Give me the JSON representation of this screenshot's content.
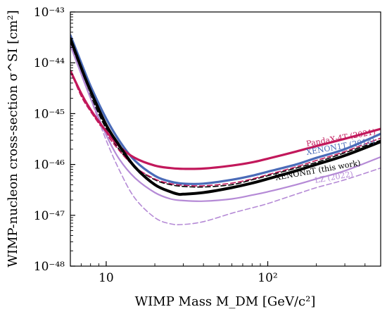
{
  "chart_data": {
    "type": "line",
    "title": "",
    "xlabel": "WIMP Mass M_DM [GeV/c²]",
    "ylabel": "WIMP-nucleon cross-section σ^SI [cm²]",
    "x_scale": "log",
    "y_scale": "log",
    "xlim": [
      6,
      500
    ],
    "ylim": [
      1e-48,
      1e-43
    ],
    "x_ticks": [
      {
        "value": 10,
        "label": "10"
      },
      {
        "value": 100,
        "label": "10²"
      }
    ],
    "y_ticks": [
      {
        "value": 1e-48,
        "label": "10⁻⁴⁸"
      },
      {
        "value": 1e-47,
        "label": "10⁻⁴⁷"
      },
      {
        "value": 1e-46,
        "label": "10⁻⁴⁶"
      },
      {
        "value": 1e-45,
        "label": "10⁻⁴⁵"
      },
      {
        "value": 1e-44,
        "label": "10⁻⁴⁴"
      },
      {
        "value": 1e-43,
        "label": "10⁻⁴³"
      }
    ],
    "grid": false,
    "series": [
      {
        "name": "PandaX-4T (2021)",
        "color": "#c2185b",
        "style": "solid",
        "width": 3.2,
        "x": [
          6,
          7,
          8,
          10,
          12,
          15,
          20,
          25,
          30,
          40,
          60,
          80,
          100,
          150,
          200,
          300,
          500
        ],
        "y": [
          7e-45,
          2.5e-45,
          1.2e-45,
          4.5e-46,
          2.3e-46,
          1.35e-46,
          9.5e-47,
          8.5e-47,
          8.2e-47,
          8.3e-47,
          9.5e-47,
          1.1e-46,
          1.3e-46,
          1.8e-46,
          2.3e-46,
          3.2e-46,
          5e-46
        ]
      },
      {
        "name": "XENON1T (2018)",
        "color": "#4a6bb8",
        "style": "solid",
        "width": 3.2,
        "x": [
          6,
          7,
          8,
          10,
          12,
          15,
          20,
          25,
          30,
          40,
          60,
          80,
          100,
          150,
          200,
          300,
          500
        ],
        "y": [
          3.5e-44,
          1e-44,
          3.5e-45,
          8e-46,
          3e-46,
          1.2e-46,
          6e-47,
          4.6e-47,
          4.2e-47,
          4.2e-47,
          5e-47,
          6e-47,
          7.2e-47,
          1e-46,
          1.35e-46,
          2e-46,
          4e-46
        ]
      },
      {
        "name": "LZ (2022)",
        "color": "#b58ad6",
        "style": "solid",
        "width": 2.2,
        "x": [
          6,
          7,
          8,
          10,
          12,
          15,
          20,
          25,
          30,
          40,
          60,
          80,
          100,
          150,
          200,
          300,
          500
        ],
        "y": [
          2.2e-44,
          6e-45,
          2e-45,
          3.8e-46,
          1.3e-46,
          5.5e-47,
          2.8e-47,
          2.1e-47,
          1.95e-47,
          1.9e-47,
          2.1e-47,
          2.5e-47,
          2.9e-47,
          4e-47,
          5.2e-47,
          7.5e-47,
          1.4e-46
        ]
      },
      {
        "name": "",
        "color": "#b58ad6",
        "style": "dashed",
        "width": 1.6,
        "x": [
          6,
          7,
          8,
          10,
          12,
          15,
          20,
          25,
          30,
          40,
          60,
          80,
          100,
          150,
          200,
          300,
          500
        ],
        "y": [
          3e-44,
          7e-45,
          2e-45,
          3e-46,
          8e-47,
          2.2e-47,
          9e-48,
          6.8e-48,
          6.6e-48,
          7.5e-48,
          1.1e-47,
          1.4e-47,
          1.7e-47,
          2.6e-47,
          3.5e-47,
          5e-47,
          8.5e-47
        ]
      },
      {
        "name": "XENONnT (this work)",
        "color": "#000000",
        "style": "solid",
        "width": 4,
        "x": [
          6,
          7,
          8,
          10,
          12,
          15,
          20,
          25,
          28,
          30,
          40,
          60,
          80,
          100,
          150,
          200,
          300,
          500
        ],
        "y": [
          3e-44,
          8e-45,
          2.8e-45,
          6e-46,
          2.4e-46,
          9e-47,
          4e-47,
          2.9e-47,
          2.6e-47,
          2.6e-47,
          2.8e-47,
          3.5e-47,
          4.3e-47,
          5.2e-47,
          7.5e-47,
          1e-46,
          1.5e-46,
          2.8e-46
        ]
      },
      {
        "name": "",
        "color": "#000000",
        "style": "dashed",
        "width": 1.6,
        "x": [
          6,
          7,
          8,
          10,
          12,
          15,
          20,
          25,
          30,
          40,
          60,
          80,
          100,
          150,
          200,
          300,
          500
        ],
        "y": [
          2.5e-44,
          6e-45,
          2.2e-45,
          5e-46,
          2e-46,
          9e-47,
          5e-47,
          4e-47,
          3.7e-47,
          3.6e-47,
          4e-47,
          5e-47,
          6e-47,
          8.5e-47,
          1.1e-46,
          1.7e-46,
          3e-46
        ]
      },
      {
        "name": "",
        "color": "#c2185b",
        "style": "dashed",
        "width": 1.6,
        "x": [
          6,
          7,
          8,
          10,
          12,
          15,
          20,
          25,
          30,
          40,
          60,
          80,
          100,
          150,
          200,
          300,
          500
        ],
        "y": [
          7e-45,
          2.2e-45,
          1.1e-45,
          4e-46,
          1.9e-46,
          9e-47,
          5.2e-47,
          4.2e-47,
          3.9e-47,
          3.8e-47,
          4.3e-47,
          5.2e-47,
          6.3e-47,
          9e-47,
          1.2e-46,
          1.8e-46,
          3.3e-46
        ]
      }
    ],
    "labels": [
      {
        "text": "PandaX-4T (2021)",
        "series": 0
      },
      {
        "text": "XENON1T (2018)",
        "series": 1
      },
      {
        "text": "XENONnT (this work)",
        "series": 4
      },
      {
        "text": "LZ (2022)",
        "series": 2
      }
    ]
  }
}
